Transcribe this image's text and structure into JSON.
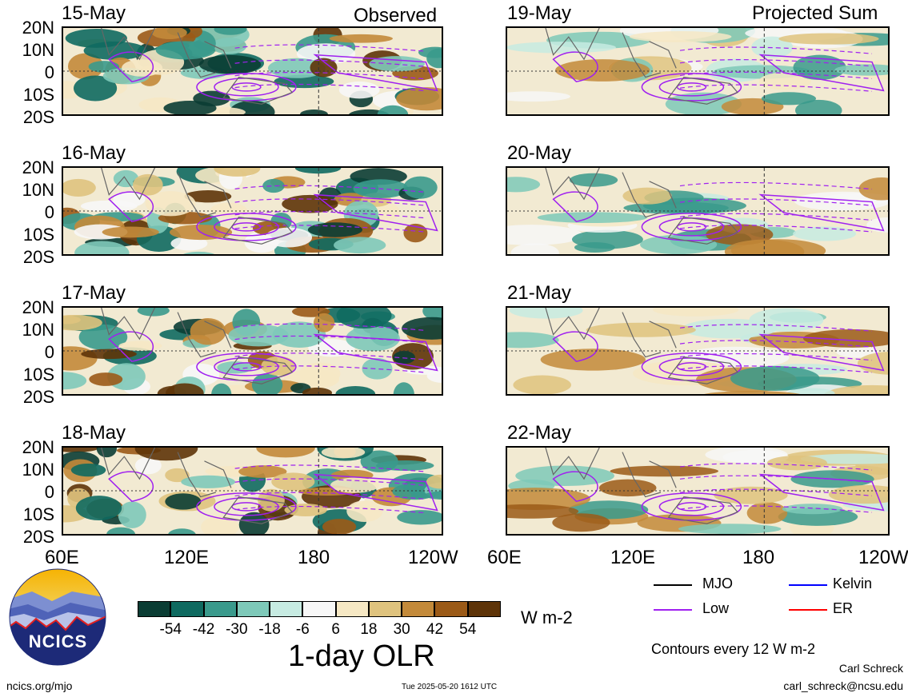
{
  "columns": {
    "left_title": "Observed",
    "right_title": "Projected Sum"
  },
  "observed_dates": [
    "15-May",
    "16-May",
    "17-May",
    "18-May"
  ],
  "projected_dates": [
    "19-May",
    "20-May",
    "21-May",
    "22-May"
  ],
  "lat_labels": [
    "20N",
    "10N",
    "0",
    "10S",
    "20S"
  ],
  "lon_labels": [
    "60E",
    "120E",
    "180",
    "120W"
  ],
  "right_lon_labels": [
    "60E",
    "120E",
    "180",
    "120W"
  ],
  "colorbar": {
    "colors": [
      "#0b3d34",
      "#0f6a60",
      "#3a9a8c",
      "#7ec9b9",
      "#c7ebe2",
      "#f7f7f7",
      "#f6e8c4",
      "#dfc37e",
      "#c38a3a",
      "#9b5a17",
      "#5e3408"
    ],
    "labels": [
      "-54",
      "-42",
      "-30",
      "-18",
      "-6",
      "6",
      "18",
      "30",
      "42",
      "54"
    ],
    "units": "W m-2",
    "title": "1-day OLR"
  },
  "legend": {
    "items": [
      {
        "label": "MJO",
        "color": "#000000"
      },
      {
        "label": "Kelvin",
        "color": "#0000ff"
      },
      {
        "label": "Low",
        "color": "#a020f0"
      },
      {
        "label": "ER",
        "color": "#ff0000"
      }
    ],
    "contours_note": "Contours every 12 W m-2"
  },
  "logo": {
    "text": "NCICS"
  },
  "footer": {
    "url": "ncics.org/mjo",
    "timestamp": "Tue 2025-05-20 1612 UTC",
    "author": "Carl Schreck",
    "email": "carl_schreck@ncsu.edu"
  }
}
